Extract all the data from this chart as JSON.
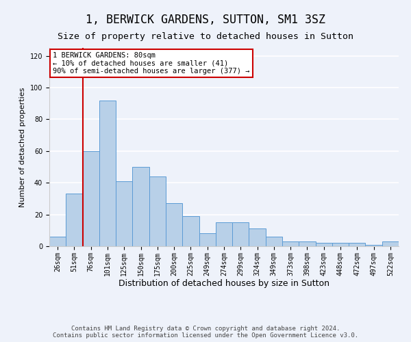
{
  "title": "1, BERWICK GARDENS, SUTTON, SM1 3SZ",
  "subtitle": "Size of property relative to detached houses in Sutton",
  "xlabel": "Distribution of detached houses by size in Sutton",
  "ylabel": "Number of detached properties",
  "footer_line1": "Contains HM Land Registry data © Crown copyright and database right 2024.",
  "footer_line2": "Contains public sector information licensed under the Open Government Licence v3.0.",
  "bar_values": [
    6,
    33,
    60,
    92,
    41,
    50,
    44,
    27,
    19,
    8,
    15,
    15,
    11,
    6,
    3,
    3,
    2,
    2,
    2,
    1,
    3
  ],
  "bar_labels": [
    "26sqm",
    "51sqm",
    "76sqm",
    "101sqm",
    "125sqm",
    "150sqm",
    "175sqm",
    "200sqm",
    "225sqm",
    "249sqm",
    "274sqm",
    "299sqm",
    "324sqm",
    "349sqm",
    "373sqm",
    "398sqm",
    "423sqm",
    "448sqm",
    "472sqm",
    "497sqm",
    "522sqm"
  ],
  "bar_color": "#b8d0e8",
  "bar_edge_color": "#5b9bd5",
  "ylim": [
    0,
    125
  ],
  "yticks": [
    0,
    20,
    40,
    60,
    80,
    100,
    120
  ],
  "vline_x": 1.5,
  "vline_color": "#cc0000",
  "annotation_text": "1 BERWICK GARDENS: 80sqm\n← 10% of detached houses are smaller (41)\n90% of semi-detached houses are larger (377) →",
  "annotation_box_color": "#ffffff",
  "annotation_box_edge_color": "#cc0000",
  "bg_color": "#eef2fa",
  "grid_color": "#ffffff",
  "title_fontsize": 12,
  "subtitle_fontsize": 9.5,
  "xlabel_fontsize": 9,
  "ylabel_fontsize": 8,
  "tick_fontsize": 7,
  "annotation_fontsize": 7.5,
  "footer_fontsize": 6.5
}
